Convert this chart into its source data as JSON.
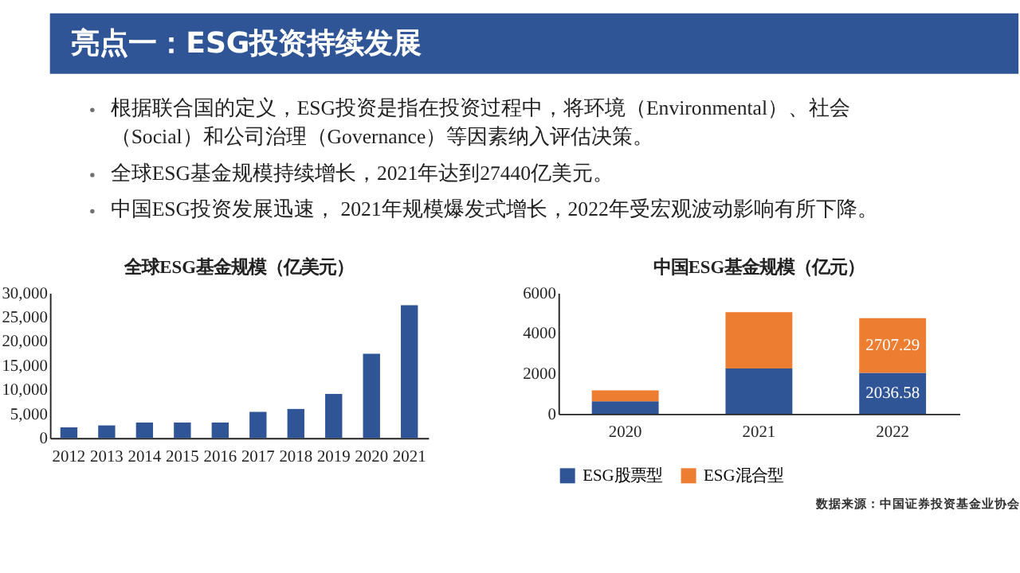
{
  "chart_data": [
    {
      "type": "other",
      "title": "亮点一：ESG投资持续发展",
      "annotations": [
        "根据联合国的定义，ESG投资是指在投资过程中，将环境（Environmental）、社会（Social）和公司治理（Governance）等因素纳入评估决策。",
        "全球ESG基金规模持续增长，2021年达到27440亿美元。",
        "中国ESG投资发展迅速， 2021年规模爆发式增长，2022年受宏观波动影响有所下降。"
      ]
    },
    {
      "type": "bar",
      "title": "全球ESG基金规模（亿美元）",
      "categories": [
        "2012",
        "2013",
        "2014",
        "2015",
        "2016",
        "2017",
        "2018",
        "2019",
        "2020",
        "2021"
      ],
      "values": [
        2200,
        2600,
        3200,
        3200,
        3200,
        5400,
        6000,
        9100,
        17400,
        27440
      ],
      "color": "#2f5597",
      "ylim": [
        0,
        30000
      ],
      "yticks": [
        0,
        {
          "value": 5000,
          "label": "5,000"
        },
        {
          "value": 10000,
          "label": "10,000"
        },
        {
          "value": 15000,
          "label": "15,000"
        },
        {
          "value": 20000,
          "label": "20,000"
        },
        {
          "value": 25000,
          "label": "25,000"
        },
        {
          "value": 30000,
          "label": "30,000"
        }
      ]
    },
    {
      "type": "bar",
      "title": "中国ESG基金规模（亿元）",
      "categories": [
        "2020",
        "2021",
        "2022"
      ],
      "stacked": true,
      "series": [
        {
          "name": "ESG股票型",
          "color": "#2f5597",
          "values": [
            620,
            2250,
            2036.58
          ],
          "value_labels": [
            null,
            null,
            "2036.58"
          ]
        },
        {
          "name": "ESG混合型",
          "color": "#ed7d31",
          "values": [
            540,
            2790,
            2707.29
          ],
          "value_labels": [
            null,
            null,
            "2707.29"
          ]
        }
      ],
      "ylim": [
        0,
        6000
      ],
      "yticks": [
        0,
        2000,
        4000,
        6000
      ],
      "legend": "bottom",
      "annotations": [
        "数据来源：中国证券投资基金业协会"
      ]
    }
  ]
}
